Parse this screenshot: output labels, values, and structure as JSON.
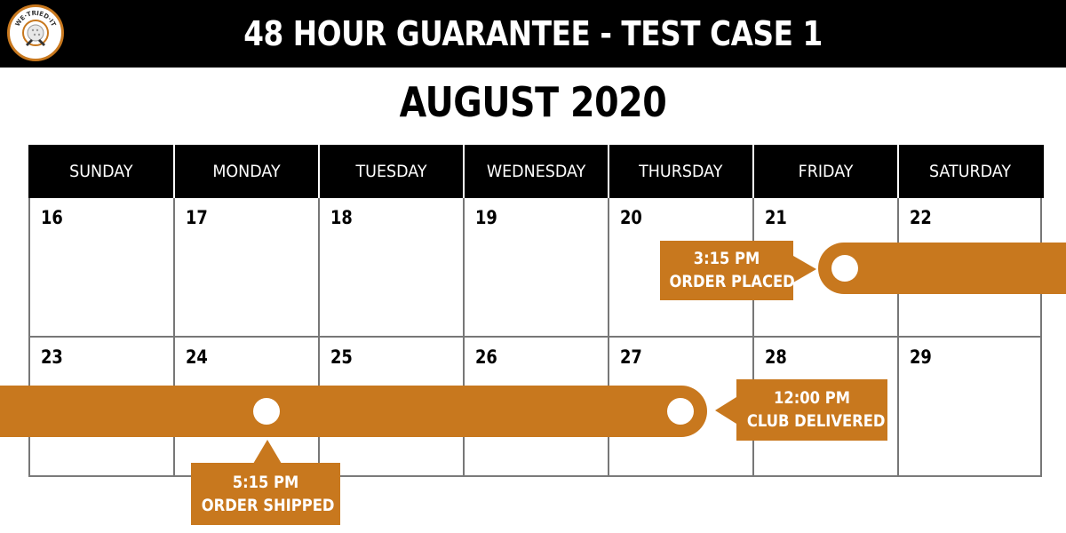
{
  "header": {
    "title": "48 HOUR GUARANTEE - TEST CASE 1",
    "logo_text": "WE·TRIED·IT"
  },
  "calendar": {
    "month_title": "AUGUST 2020",
    "weekdays": [
      "SUNDAY",
      "MONDAY",
      "TUESDAY",
      "WEDNESDAY",
      "THURSDAY",
      "FRIDAY",
      "SATURDAY"
    ],
    "weeks": [
      [
        "16",
        "17",
        "18",
        "19",
        "20",
        "21",
        "22"
      ],
      [
        "23",
        "24",
        "25",
        "26",
        "27",
        "28",
        "29"
      ]
    ]
  },
  "events": [
    {
      "time": "3:15 PM",
      "label": "ORDER PLACED"
    },
    {
      "time": "12:00 PM",
      "label": "CLUB DELIVERED"
    },
    {
      "time": "5:15 PM",
      "label": "ORDER SHIPPED"
    }
  ],
  "colors": {
    "accent": "#c8781e",
    "header_bg": "#000000",
    "grid": "#777777"
  },
  "icons": {
    "logo": "we-tried-it-logo-icon"
  }
}
